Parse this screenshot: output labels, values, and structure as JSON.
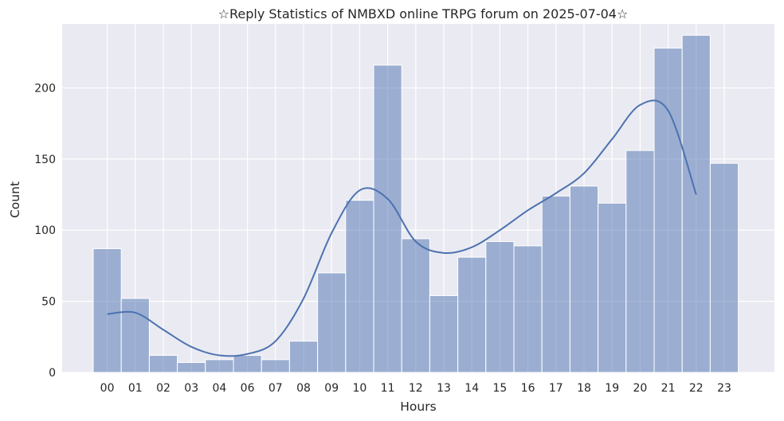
{
  "chart_data": {
    "type": "bar",
    "title": "☆Reply Statistics of NMBXD online TRPG forum on 2025-07-04☆",
    "xlabel": "Hours",
    "ylabel": "Count",
    "ylim": [
      0,
      245
    ],
    "yticks": [
      0,
      50,
      100,
      150,
      200
    ],
    "categories": [
      "00",
      "01",
      "02",
      "03",
      "04",
      "06",
      "07",
      "08",
      "09",
      "10",
      "11",
      "12",
      "13",
      "14",
      "15",
      "16",
      "17",
      "18",
      "19",
      "20",
      "21",
      "22",
      "23"
    ],
    "values": [
      87,
      52,
      12,
      7,
      9,
      12,
      9,
      22,
      70,
      121,
      216,
      94,
      54,
      81,
      92,
      89,
      124,
      131,
      119,
      156,
      228,
      237,
      147
    ],
    "kde_curve": {
      "values": [
        41,
        42,
        30,
        18,
        12,
        13,
        22,
        52,
        98,
        128,
        122,
        92,
        84,
        88,
        100,
        114,
        126,
        140,
        164,
        188,
        184,
        125
      ]
    },
    "grid": true,
    "colors": {
      "background": "#eaeaf2",
      "bar_fill": "#4c72b0",
      "bar_edge": "#ffffff",
      "kde_line": "#4c72b0",
      "grid": "#ffffff"
    }
  }
}
